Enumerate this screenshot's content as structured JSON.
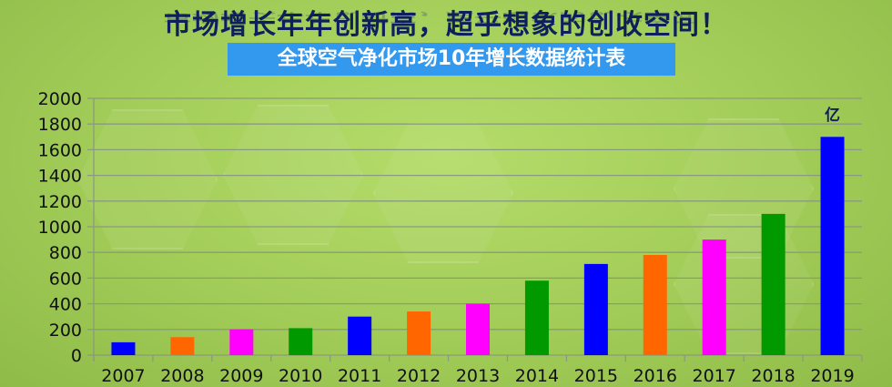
{
  "header": {
    "title": "市场增长年年创新高，超乎想象的创收空间！",
    "subtitle": "全球空气净化市场10年增长数据统计表"
  },
  "chart_data": {
    "type": "bar",
    "title": "全球空气净化市场10年增长数据统计表",
    "unit_label": "亿",
    "categories": [
      "2007",
      "2008",
      "2009",
      "2010",
      "2011",
      "2012",
      "2013",
      "2014",
      "2015",
      "2016",
      "2017",
      "2018",
      "2019"
    ],
    "values": [
      100,
      140,
      200,
      210,
      300,
      340,
      400,
      580,
      710,
      780,
      900,
      1100,
      1700
    ],
    "colors": [
      "#0000ff",
      "#ff6600",
      "#ff00ff",
      "#009900",
      "#0000ff",
      "#ff6600",
      "#ff00ff",
      "#009900",
      "#0000ff",
      "#ff6600",
      "#ff00ff",
      "#009900",
      "#0000ff"
    ],
    "yticks": [
      0,
      200,
      400,
      600,
      800,
      1000,
      1200,
      1400,
      1600,
      1800,
      2000
    ],
    "ylim": [
      0,
      2000
    ],
    "grid": true,
    "legend": "none"
  }
}
